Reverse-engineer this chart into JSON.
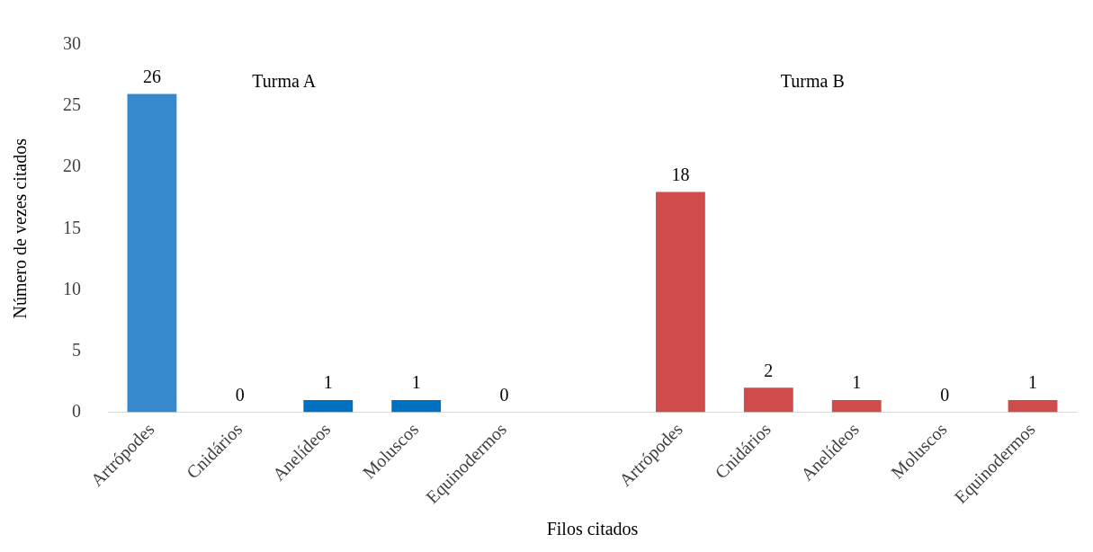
{
  "chart_data": {
    "type": "bar",
    "xlabel": "Filos citados",
    "ylabel": "Número de vezes citados",
    "categories": [
      "Artrópodes",
      "Cnidários",
      "Anelídeos",
      "Moluscos",
      "Equinodermos",
      null,
      "Artrópodes",
      "Cnidários",
      "Anelídeos",
      "Moluscos",
      "Equinodermos"
    ],
    "annotations": [
      "Turma A",
      "Turma B"
    ],
    "series": [
      {
        "color": "#0070c0",
        "colors": [
          "#3589cc",
          "#0070c0",
          "#0070c0",
          "#0070c0",
          "#0070c0",
          null,
          null,
          null,
          null,
          null,
          null
        ],
        "values": [
          26,
          0,
          1,
          1,
          0,
          null,
          null,
          null,
          null,
          null,
          null
        ]
      },
      {
        "color": "#d04b4b",
        "values": [
          null,
          null,
          null,
          null,
          null,
          null,
          18,
          2,
          1,
          0,
          1
        ]
      }
    ],
    "ylim": [
      0,
      30
    ],
    "yticks": [
      0,
      5,
      10,
      15,
      20,
      25,
      30
    ],
    "grid": false,
    "legend": false,
    "data_labels": true
  }
}
